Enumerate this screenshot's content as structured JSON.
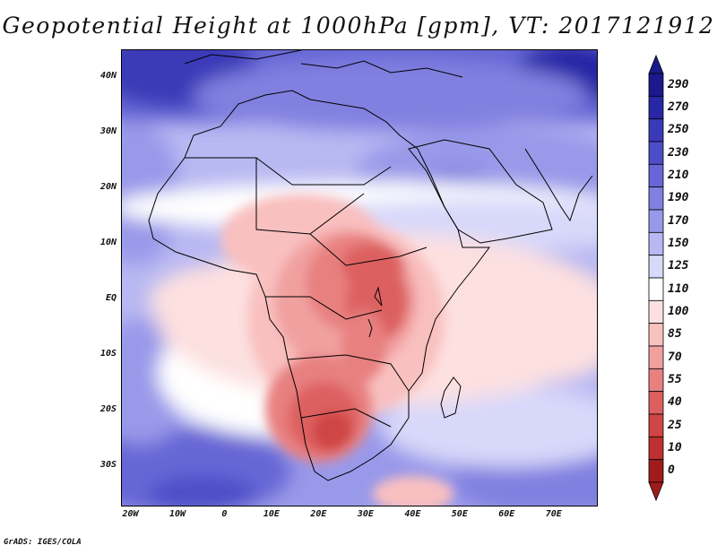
{
  "title": "Geopotential Height at 1000hPa [gpm], VT: 2017121912",
  "credit": "GrADS: IGES/COLA",
  "map": {
    "lat_ticks": [
      {
        "label": "40N",
        "lat": 40
      },
      {
        "label": "30N",
        "lat": 30
      },
      {
        "label": "20N",
        "lat": 20
      },
      {
        "label": "10N",
        "lat": 10
      },
      {
        "label": "EQ",
        "lat": 0
      },
      {
        "label": "10S",
        "lat": -10
      },
      {
        "label": "20S",
        "lat": -20
      },
      {
        "label": "30S",
        "lat": -30
      }
    ],
    "lon_ticks": [
      {
        "label": "20W",
        "lon": -20
      },
      {
        "label": "10W",
        "lon": -10
      },
      {
        "label": "0",
        "lon": 0
      },
      {
        "label": "10E",
        "lon": 10
      },
      {
        "label": "20E",
        "lon": 20
      },
      {
        "label": "30E",
        "lon": 30
      },
      {
        "label": "40E",
        "lon": 40
      },
      {
        "label": "50E",
        "lon": 50
      },
      {
        "label": "60E",
        "lon": 60
      },
      {
        "label": "70E",
        "lon": 70
      }
    ],
    "lon_range": [
      -22,
      79
    ],
    "lat_range": [
      -37,
      45
    ]
  },
  "colorbar": {
    "levels": [
      "290",
      "270",
      "250",
      "230",
      "210",
      "190",
      "170",
      "150",
      "125",
      "110",
      "100",
      "85",
      "70",
      "55",
      "40",
      "25",
      "10",
      "0"
    ],
    "colors": [
      "#1a1a8c",
      "#2727a6",
      "#3a3ab8",
      "#4d4dc8",
      "#6666d6",
      "#8080e0",
      "#9999ea",
      "#b8b8f2",
      "#d8d8fa",
      "#ffffff",
      "#fde0e0",
      "#f9c0c0",
      "#f1a0a0",
      "#e88080",
      "#dd6060",
      "#d04545",
      "#bd3030",
      "#a01c1c"
    ]
  },
  "colors": {
    "land_outline": "#000000",
    "background": "#ffffff"
  }
}
